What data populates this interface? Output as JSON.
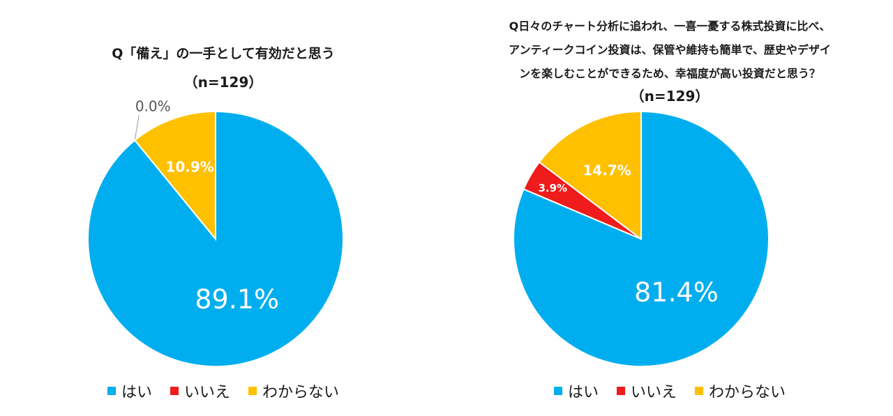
{
  "chart_data": [
    {
      "type": "pie",
      "title_lines": [
        "Q「備え」の一手として有効だと思う"
      ],
      "n_label": "（n=129）",
      "categories": [
        "はい",
        "いいえ",
        "わからない"
      ],
      "values": [
        89.1,
        0.0,
        10.9
      ],
      "value_labels": [
        "89.1%",
        "0.0%",
        "10.9%"
      ],
      "colors": [
        "#00AEEF",
        "#EE1C1C",
        "#FFC000"
      ],
      "start_angle_deg": 0,
      "direction": "clockwise",
      "legend": "bottom"
    },
    {
      "type": "pie",
      "title_lines": [
        "Q日々のチャート分析に追われ、一喜一憂する株式投資に比べ、",
        "アンティークコイン投資は、保管や維持も簡単で、歴史やデザイ",
        "ンを楽しむことができるため、幸福度が高い投資だと思う？"
      ],
      "n_label": "（n=129）",
      "categories": [
        "はい",
        "いいえ",
        "わからない"
      ],
      "values": [
        81.4,
        3.9,
        14.7
      ],
      "value_labels": [
        "81.4%",
        "3.9%",
        "14.7%"
      ],
      "colors": [
        "#00AEEF",
        "#EE1C1C",
        "#FFC000"
      ],
      "start_angle_deg": 0,
      "direction": "clockwise",
      "legend": "bottom"
    }
  ]
}
